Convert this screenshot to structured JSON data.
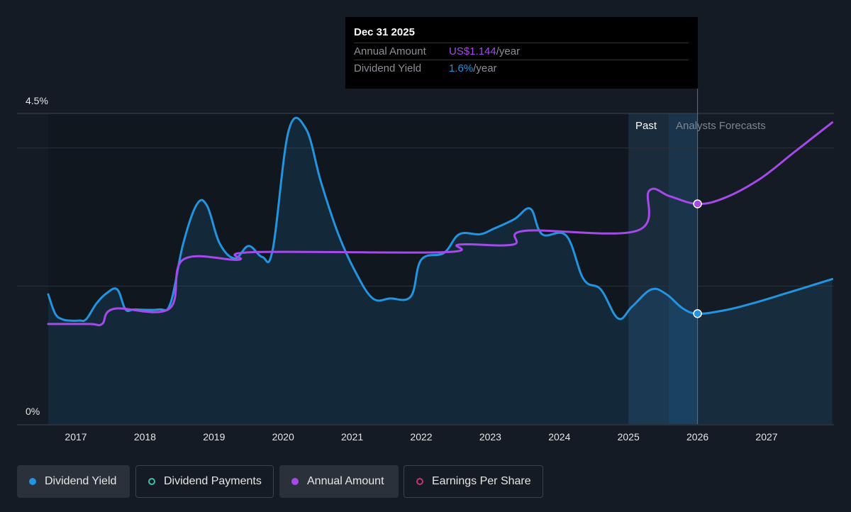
{
  "tooltip": {
    "date": "Dec 31 2025",
    "annual_label": "Annual Amount",
    "annual_value": "US$1.144",
    "annual_unit": "/year",
    "yield_label": "Dividend Yield",
    "yield_value": "1.6%",
    "yield_unit": "/year"
  },
  "colors": {
    "background": "#151b24",
    "dividend_yield": "#2394df",
    "annual_amount": "#a54ae9",
    "dividend_payments": "#3fbfa6",
    "earnings_per_share": "#c4366f"
  },
  "legend": [
    {
      "label": "Dividend Yield",
      "color": "#2394df",
      "active": true,
      "icon": "filled-dot-icon"
    },
    {
      "label": "Dividend Payments",
      "color": "#3fbfa6",
      "active": false,
      "icon": "hollow-dot-icon"
    },
    {
      "label": "Annual Amount",
      "color": "#a54ae9",
      "active": true,
      "icon": "filled-dot-icon"
    },
    {
      "label": "Earnings Per Share",
      "color": "#c4366f",
      "active": false,
      "icon": "hollow-dot-icon"
    }
  ],
  "chart_data": {
    "type": "line",
    "y_axis_labels": [
      "4.5%",
      "0%"
    ],
    "ylim": [
      0,
      4.5
    ],
    "x_ticks": [
      "2017",
      "2018",
      "2019",
      "2020",
      "2021",
      "2022",
      "2023",
      "2024",
      "2025",
      "2026",
      "2027"
    ],
    "xlim": [
      2016.6,
      2027.95
    ],
    "region_labels": {
      "past": "Past",
      "forecast": "Analysts Forecasts"
    },
    "past_band": [
      2025.0,
      2025.58
    ],
    "forecast_start": 2026.0,
    "grid": true,
    "series": [
      {
        "name": "Dividend Yield",
        "color": "#2394df",
        "area": true,
        "points": [
          [
            2016.6,
            1.88
          ],
          [
            2016.7,
            1.6
          ],
          [
            2016.8,
            1.52
          ],
          [
            2016.9,
            1.5
          ],
          [
            2017.05,
            1.5
          ],
          [
            2017.15,
            1.52
          ],
          [
            2017.3,
            1.75
          ],
          [
            2017.45,
            1.9
          ],
          [
            2017.6,
            1.95
          ],
          [
            2017.72,
            1.66
          ],
          [
            2017.85,
            1.66
          ],
          [
            2018.2,
            1.66
          ],
          [
            2018.37,
            1.75
          ],
          [
            2018.55,
            2.6
          ],
          [
            2018.75,
            3.18
          ],
          [
            2018.9,
            3.16
          ],
          [
            2019.08,
            2.62
          ],
          [
            2019.3,
            2.4
          ],
          [
            2019.5,
            2.58
          ],
          [
            2019.7,
            2.42
          ],
          [
            2019.85,
            2.53
          ],
          [
            2020.08,
            4.25
          ],
          [
            2020.33,
            4.28
          ],
          [
            2020.55,
            3.5
          ],
          [
            2020.8,
            2.75
          ],
          [
            2021.05,
            2.2
          ],
          [
            2021.3,
            1.82
          ],
          [
            2021.55,
            1.82
          ],
          [
            2021.85,
            1.85
          ],
          [
            2022.0,
            2.38
          ],
          [
            2022.33,
            2.48
          ],
          [
            2022.55,
            2.75
          ],
          [
            2022.85,
            2.75
          ],
          [
            2023.05,
            2.83
          ],
          [
            2023.35,
            2.97
          ],
          [
            2023.58,
            3.12
          ],
          [
            2023.75,
            2.75
          ],
          [
            2024.1,
            2.73
          ],
          [
            2024.35,
            2.1
          ],
          [
            2024.6,
            1.95
          ],
          [
            2024.85,
            1.53
          ],
          [
            2025.05,
            1.7
          ],
          [
            2025.33,
            1.95
          ],
          [
            2025.55,
            1.88
          ],
          [
            2025.78,
            1.68
          ],
          [
            2026.0,
            1.6
          ],
          [
            2026.4,
            1.65
          ],
          [
            2026.8,
            1.75
          ],
          [
            2027.3,
            1.9
          ],
          [
            2027.95,
            2.1
          ]
        ],
        "marker_at": [
          2026.0,
          1.6
        ]
      },
      {
        "name": "Annual Amount",
        "color": "#a54ae9",
        "area": false,
        "points": [
          [
            2016.6,
            1.45
          ],
          [
            2017.2,
            1.45
          ],
          [
            2017.38,
            1.45
          ],
          [
            2017.55,
            1.67
          ],
          [
            2018.35,
            1.67
          ],
          [
            2018.55,
            2.38
          ],
          [
            2019.35,
            2.38
          ],
          [
            2019.55,
            2.49
          ],
          [
            2022.33,
            2.49
          ],
          [
            2022.55,
            2.6
          ],
          [
            2023.33,
            2.6
          ],
          [
            2023.5,
            2.8
          ],
          [
            2025.12,
            2.8
          ],
          [
            2025.3,
            3.38
          ],
          [
            2025.6,
            3.3
          ],
          [
            2026.0,
            3.19
          ],
          [
            2026.4,
            3.28
          ],
          [
            2026.9,
            3.55
          ],
          [
            2027.4,
            3.94
          ],
          [
            2027.95,
            4.37
          ]
        ],
        "marker_at": [
          2026.0,
          3.19
        ]
      }
    ]
  }
}
